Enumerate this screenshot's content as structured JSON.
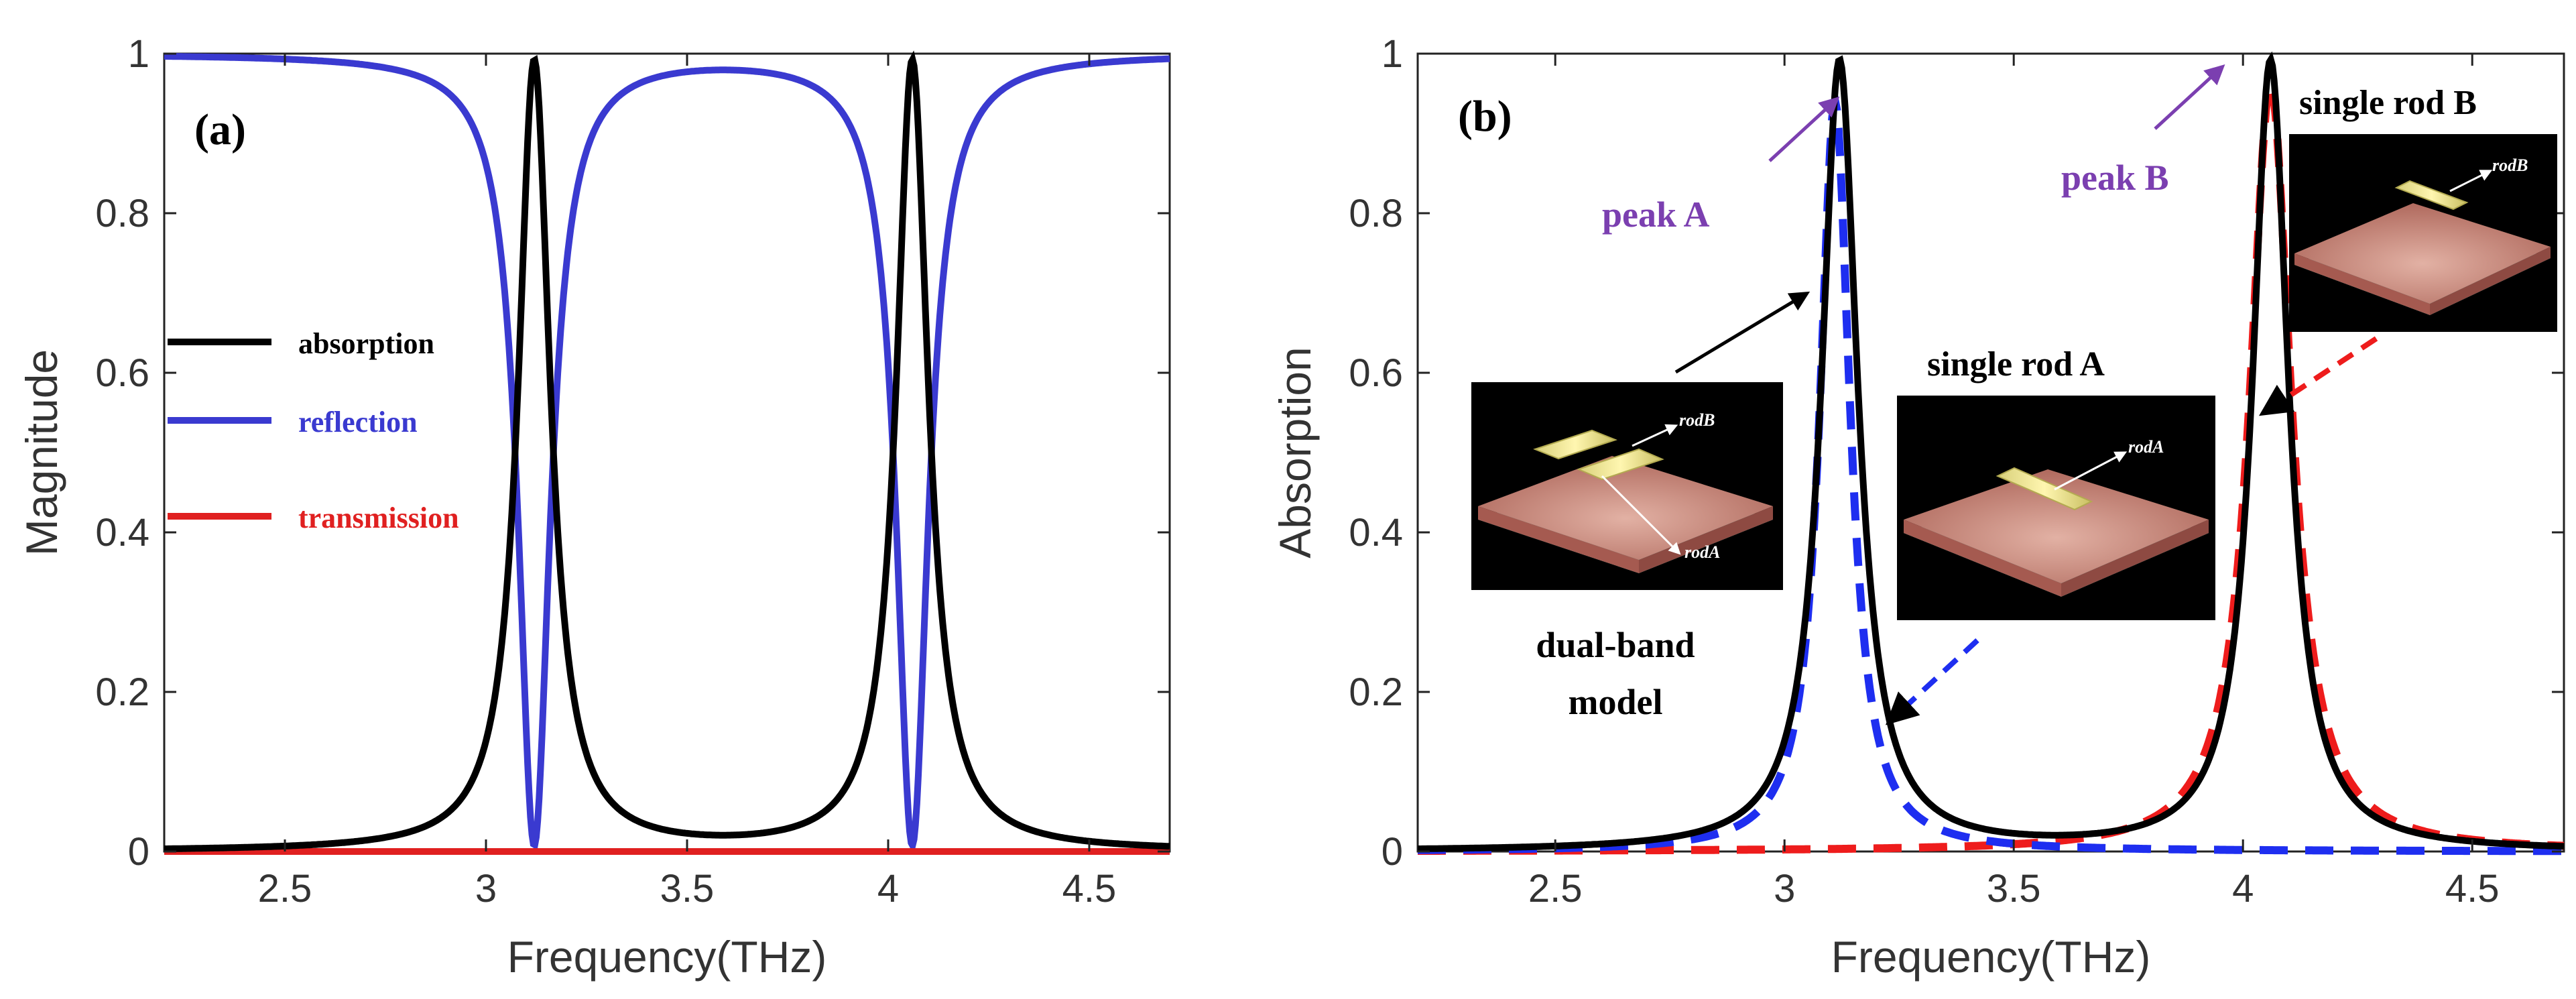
{
  "chart_data": [
    {
      "panel": "(a)",
      "type": "line",
      "xlabel": "Frequency(THz)",
      "ylabel": "Magnitude",
      "xlim": [
        2.2,
        4.7
      ],
      "ylim": [
        0,
        1
      ],
      "xticks": [
        "2.5",
        "3",
        "3.5",
        "4",
        "4.5"
      ],
      "xtick_values": [
        2.5,
        3,
        3.5,
        4,
        4.5
      ],
      "yticks": [
        "0",
        "0.2",
        "0.4",
        "0.6",
        "0.8",
        "1"
      ],
      "ytick_values": [
        0,
        0.2,
        0.4,
        0.6,
        0.8,
        1
      ],
      "legend": [
        {
          "label": "absorption",
          "color": "#000000"
        },
        {
          "label": "reflection",
          "color": "#3a3ad0"
        },
        {
          "label": "transmission",
          "color": "#e02020"
        }
      ],
      "series": [
        {
          "name": "absorption",
          "color": "#000000",
          "peaks": [
            {
              "f0": 3.12,
              "hw": 0.048,
              "amp": 0.99
            },
            {
              "f0": 4.06,
              "hw": 0.048,
              "amp": 0.99
            }
          ],
          "baseline": 0.0
        },
        {
          "name": "reflection",
          "color": "#3a3ad0",
          "complement_of": "absorption",
          "offset": 0.0
        },
        {
          "name": "transmission",
          "color": "#e02020",
          "constant": 0.0
        }
      ]
    },
    {
      "panel": "(b)",
      "type": "line",
      "xlabel": "Frequency(THz)",
      "ylabel": "Absorption",
      "xlim": [
        2.2,
        4.7
      ],
      "ylim": [
        0,
        1
      ],
      "xticks": [
        "2.5",
        "3",
        "3.5",
        "4",
        "4.5"
      ],
      "xtick_values": [
        2.5,
        3,
        3.5,
        4,
        4.5
      ],
      "yticks": [
        "0",
        "0.2",
        "0.4",
        "0.6",
        "0.8",
        "1"
      ],
      "ytick_values": [
        0,
        0.2,
        0.4,
        0.6,
        0.8,
        1
      ],
      "series": [
        {
          "name": "dual-band model",
          "color": "#000000",
          "style": "solid",
          "peaks": [
            {
              "f0": 3.12,
              "hw": 0.048,
              "amp": 0.99
            },
            {
              "f0": 4.06,
              "hw": 0.048,
              "amp": 0.99
            }
          ],
          "baseline": 0.0
        },
        {
          "name": "single rod A",
          "color": "#1e2ef0",
          "style": "dashed",
          "peaks": [
            {
              "f0": 3.11,
              "hw": 0.04,
              "amp": 0.94
            }
          ],
          "baseline": 0.0
        },
        {
          "name": "single rod B",
          "color": "#ee1c1c",
          "style": "dashed",
          "peaks": [
            {
              "f0": 4.06,
              "hw": 0.055,
              "amp": 0.96
            }
          ],
          "baseline": 0.0
        }
      ],
      "annotations": {
        "peak_a": "peak A",
        "peak_b": "peak B",
        "dual_band_1": "dual-band",
        "dual_band_2": "model",
        "single_rod_a": "single rod A",
        "single_rod_b": "single rod B",
        "inset_rodA": "rodA",
        "inset_rodB": "rodB"
      }
    }
  ]
}
